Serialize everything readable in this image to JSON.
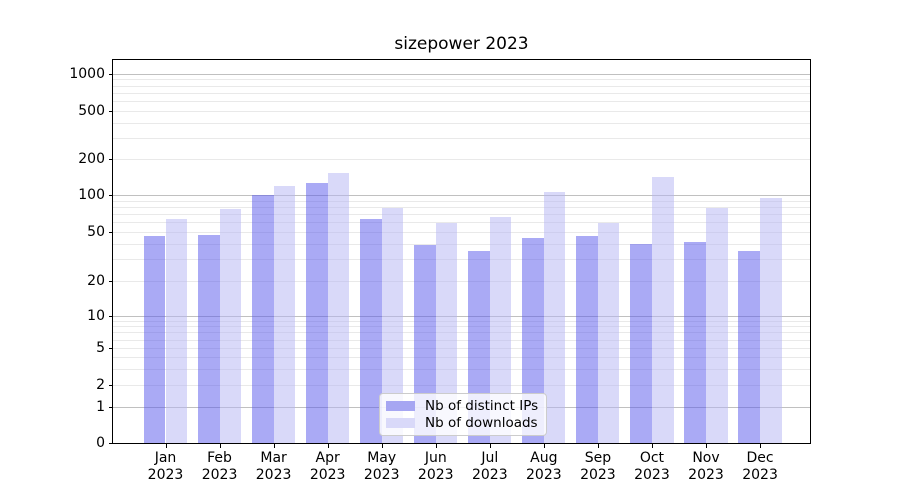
{
  "chart_data": {
    "type": "bar",
    "title": "sizepower 2023",
    "categories": [
      "Jan 2023",
      "Feb 2023",
      "Mar 2023",
      "Apr 2023",
      "May 2023",
      "Jun 2023",
      "Jul 2023",
      "Aug 2023",
      "Sep 2023",
      "Oct 2023",
      "Nov 2023",
      "Dec 2023"
    ],
    "series": [
      {
        "name": "Nb of distinct IPs",
        "values": [
          46,
          47,
          100,
          125,
          63,
          39,
          35,
          44,
          46,
          40,
          41,
          35
        ],
        "bar_color": "rgba(85,85,235,0.5)",
        "legend_color": "#a6a6f2"
      },
      {
        "name": "Nb of downloads",
        "values": [
          63,
          76,
          120,
          152,
          78,
          59,
          66,
          106,
          59,
          141,
          78,
          94
        ],
        "bar_color": "rgba(180,180,244,0.5)",
        "legend_color": "#d9d9f9"
      }
    ],
    "yscale": "symlog",
    "yticks": [
      0,
      1,
      2,
      5,
      10,
      20,
      50,
      100,
      200,
      500,
      1000
    ],
    "ylim": [
      0,
      1300
    ],
    "xlabel": "",
    "ylabel": "",
    "grid": true,
    "legend_position": "lower center"
  }
}
